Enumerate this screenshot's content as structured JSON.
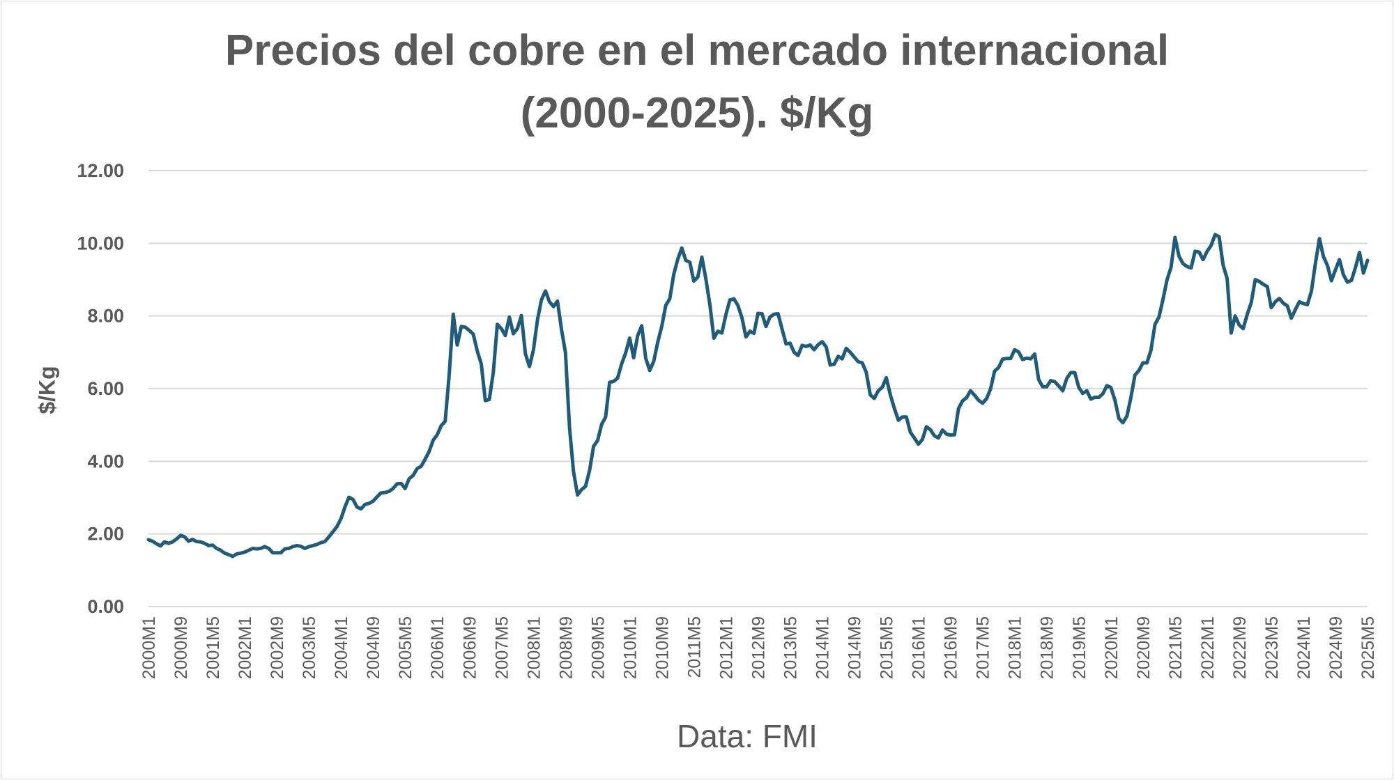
{
  "chart_data": {
    "type": "line",
    "title": "Precios del cobre en el mercado internacional (2000-2025). $/Kg",
    "title_lines": [
      "Precios del cobre en el mercado internacional",
      "(2000-2025). $/Kg"
    ],
    "ylabel": "$/Kg",
    "xlabel": "",
    "source": "Data: FMI",
    "ylim": [
      0,
      12
    ],
    "yticks": [
      "0.00",
      "2.00",
      "4.00",
      "6.00",
      "8.00",
      "10.00",
      "12.00"
    ],
    "x_range": [
      "2000M1",
      "2025M5"
    ],
    "frequency": "monthly",
    "grid": true,
    "line_color": "#1f5c7a",
    "xtick_labels": [
      "2000M1",
      "2000M9",
      "2001M5",
      "2002M1",
      "2002M9",
      "2003M5",
      "2004M1",
      "2004M9",
      "2005M5",
      "2006M1",
      "2006M9",
      "2007M5",
      "2008M1",
      "2008M9",
      "2009M5",
      "2010M1",
      "2010M9",
      "2011M5",
      "2012M1",
      "2012M9",
      "2013M5",
      "2014M1",
      "2014M9",
      "2015M5",
      "2016M1",
      "2016M9",
      "2017M5",
      "2018M1",
      "2018M9",
      "2019M5",
      "2020M1",
      "2020M9",
      "2021M5",
      "2022M1",
      "2022M9",
      "2023M5",
      "2024M1",
      "2024M9",
      "2025M5"
    ],
    "values": [
      1.84,
      1.8,
      1.73,
      1.67,
      1.78,
      1.74,
      1.78,
      1.86,
      1.96,
      1.92,
      1.8,
      1.85,
      1.79,
      1.78,
      1.74,
      1.68,
      1.69,
      1.6,
      1.55,
      1.47,
      1.43,
      1.38,
      1.45,
      1.47,
      1.5,
      1.55,
      1.6,
      1.59,
      1.6,
      1.65,
      1.6,
      1.48,
      1.48,
      1.48,
      1.59,
      1.6,
      1.65,
      1.68,
      1.66,
      1.6,
      1.65,
      1.68,
      1.71,
      1.76,
      1.79,
      1.92,
      2.06,
      2.2,
      2.42,
      2.74,
      3.01,
      2.95,
      2.74,
      2.69,
      2.81,
      2.84,
      2.9,
      3.02,
      3.13,
      3.14,
      3.17,
      3.25,
      3.38,
      3.39,
      3.25,
      3.52,
      3.61,
      3.8,
      3.86,
      4.06,
      4.27,
      4.58,
      4.73,
      4.98,
      5.1,
      6.39,
      8.05,
      7.2,
      7.71,
      7.69,
      7.6,
      7.5,
      7.03,
      6.68,
      5.67,
      5.7,
      6.45,
      7.77,
      7.65,
      7.46,
      7.97,
      7.51,
      7.65,
      8.01,
      6.96,
      6.61,
      7.06,
      7.89,
      8.44,
      8.69,
      8.39,
      8.26,
      8.41,
      7.63,
      6.99,
      4.93,
      3.72,
      3.07,
      3.22,
      3.31,
      3.75,
      4.41,
      4.57,
      5.01,
      5.22,
      6.17,
      6.2,
      6.29,
      6.68,
      6.98,
      7.39,
      6.85,
      7.46,
      7.73,
      6.84,
      6.5,
      6.75,
      7.28,
      7.71,
      8.29,
      8.47,
      9.15,
      9.56,
      9.87,
      9.53,
      9.48,
      8.96,
      9.07,
      9.62,
      9.02,
      8.31,
      7.39,
      7.58,
      7.53,
      8.04,
      8.44,
      8.47,
      8.29,
      7.95,
      7.42,
      7.58,
      7.52,
      8.07,
      8.06,
      7.71,
      7.97,
      8.05,
      8.06,
      7.64,
      7.23,
      7.25,
      7.0,
      6.91,
      7.19,
      7.16,
      7.2,
      7.07,
      7.21,
      7.29,
      7.15,
      6.65,
      6.67,
      6.89,
      6.82,
      7.11,
      7.0,
      6.87,
      6.74,
      6.71,
      6.45,
      5.83,
      5.73,
      5.94,
      6.04,
      6.3,
      5.83,
      5.46,
      5.13,
      5.22,
      5.22,
      4.8,
      4.64,
      4.47,
      4.6,
      4.95,
      4.87,
      4.7,
      4.64,
      4.86,
      4.75,
      4.72,
      4.73,
      5.45,
      5.66,
      5.75,
      5.94,
      5.82,
      5.68,
      5.6,
      5.72,
      5.99,
      6.48,
      6.58,
      6.81,
      6.83,
      6.83,
      7.07,
      7.01,
      6.8,
      6.84,
      6.82,
      6.95,
      6.25,
      6.05,
      6.05,
      6.22,
      6.19,
      6.07,
      5.94,
      6.28,
      6.44,
      6.44,
      6.03,
      5.87,
      5.94,
      5.71,
      5.76,
      5.76,
      5.86,
      6.08,
      6.03,
      5.69,
      5.18,
      5.06,
      5.24,
      5.76,
      6.37,
      6.5,
      6.71,
      6.71,
      7.06,
      7.77,
      7.97,
      8.46,
      8.99,
      9.34,
      10.16,
      9.64,
      9.44,
      9.36,
      9.32,
      9.78,
      9.76,
      9.55,
      9.78,
      9.94,
      10.24,
      10.18,
      9.39,
      9.03,
      7.53,
      8.0,
      7.75,
      7.65,
      8.04,
      8.37,
      9.0,
      8.95,
      8.87,
      8.81,
      8.23,
      8.39,
      8.48,
      8.35,
      8.28,
      7.94,
      8.17,
      8.39,
      8.34,
      8.31,
      8.68,
      9.44,
      10.13,
      9.64,
      9.39,
      8.97,
      9.27,
      9.55,
      9.13,
      8.93,
      8.98,
      9.33,
      9.75,
      9.18,
      9.53
    ]
  }
}
